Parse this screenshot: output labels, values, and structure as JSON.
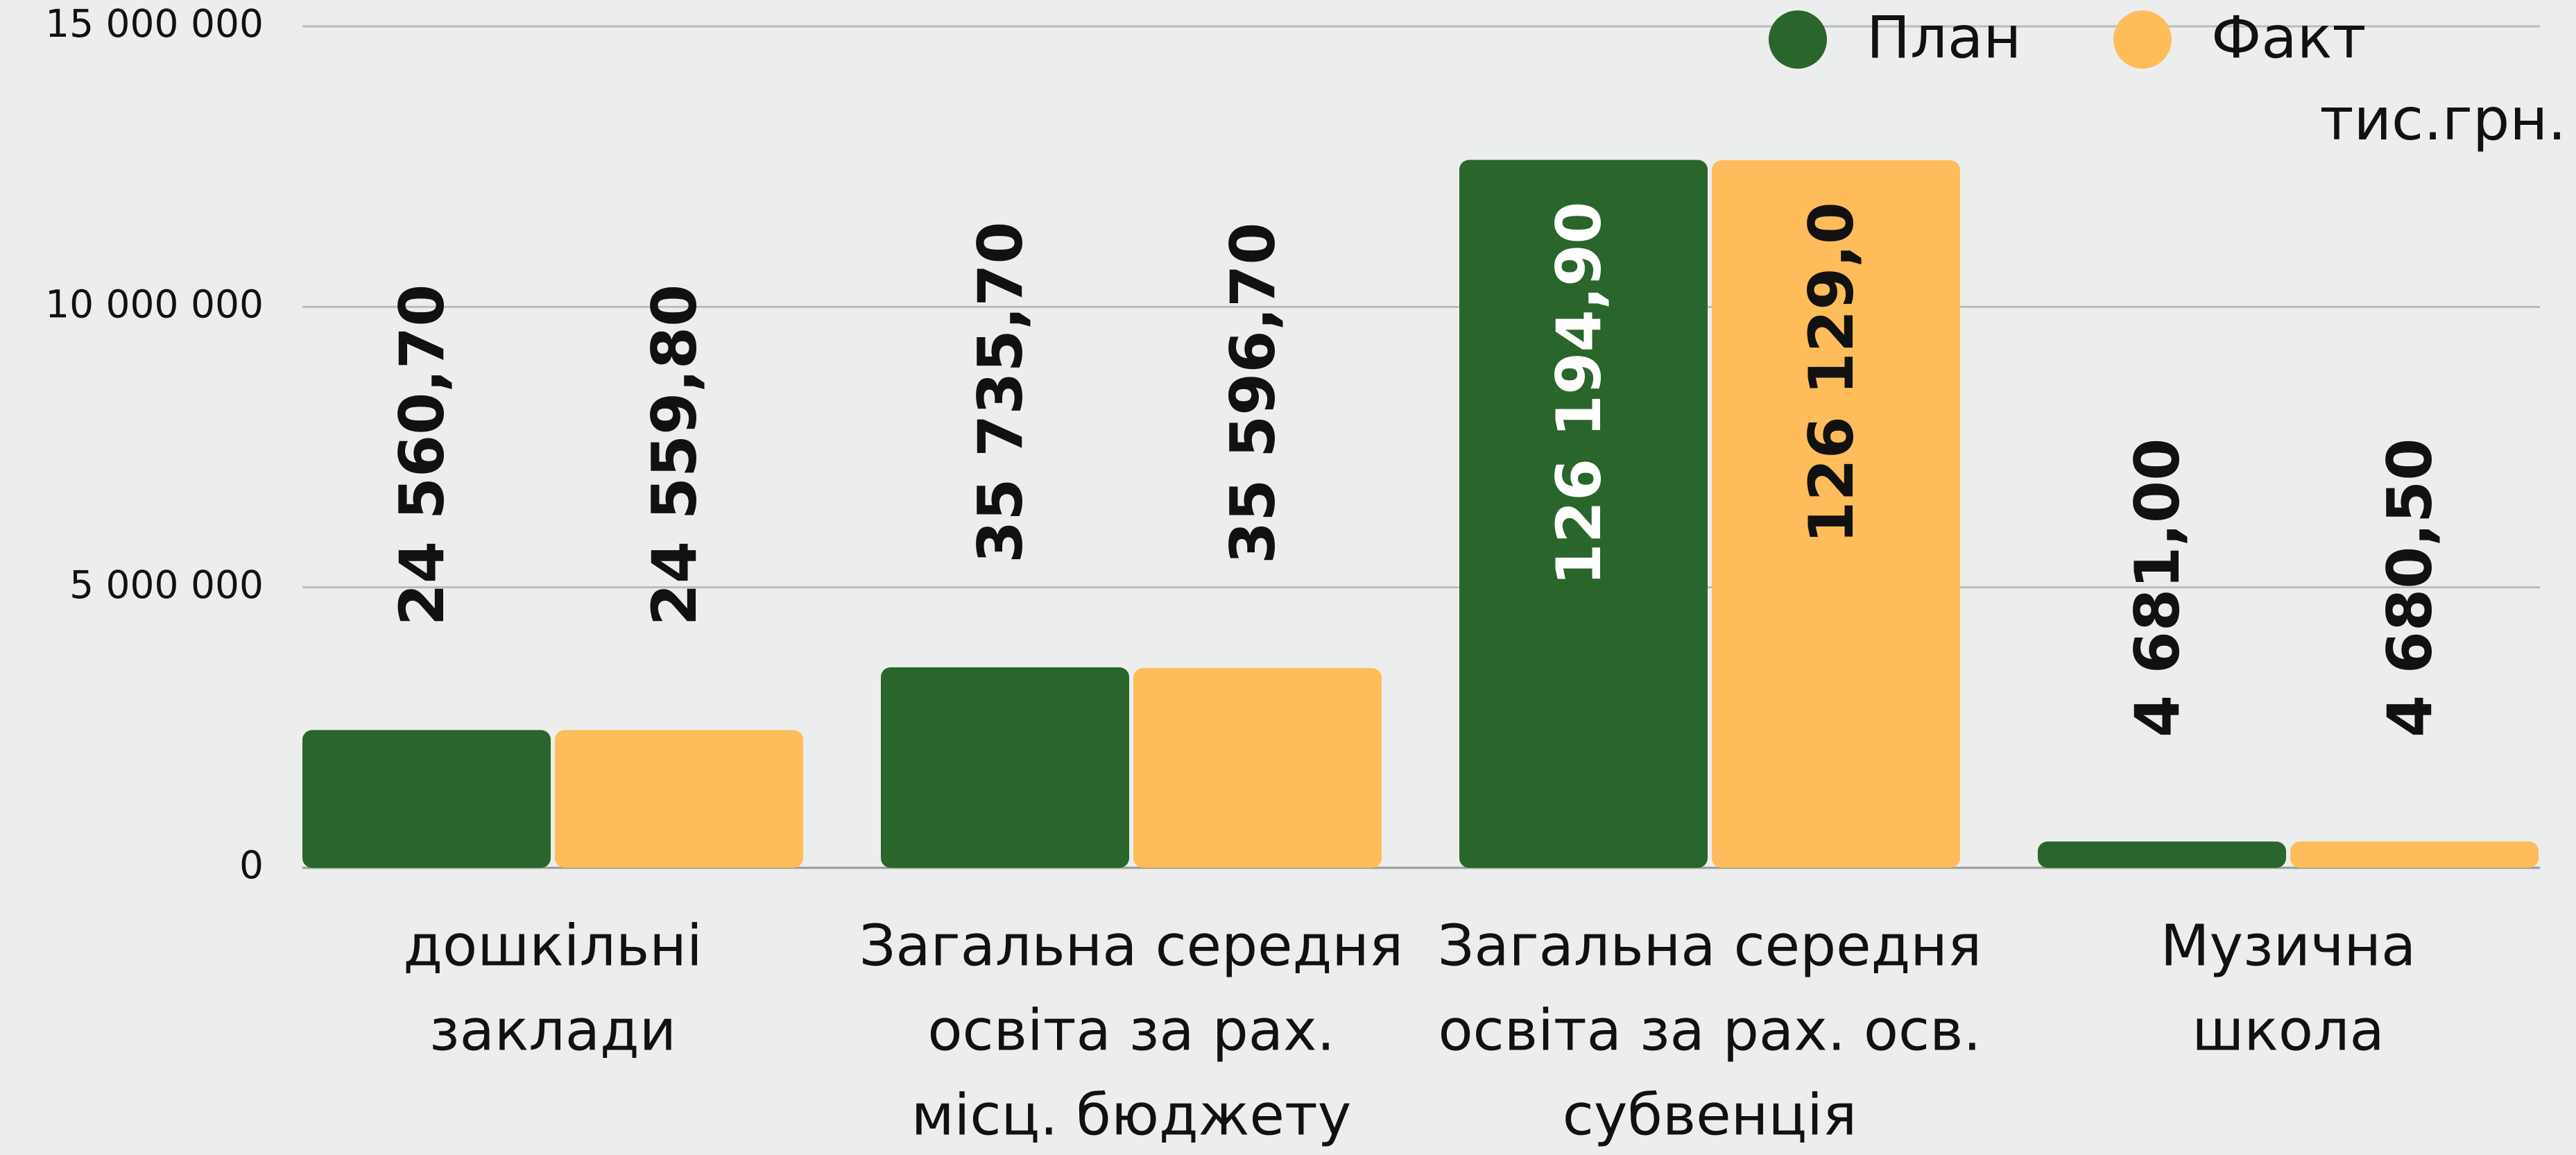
{
  "chart_data": {
    "type": "bar",
    "categories": [
      [
        "дошкільні",
        "заклади"
      ],
      [
        "Загальна середня",
        "освіта за рах.",
        "місц. бюджету"
      ],
      [
        "Загальна середня",
        "освіта за рах. осв.",
        "субвенція"
      ],
      [
        "Музична",
        "школа"
      ]
    ],
    "series": [
      {
        "name": "План",
        "color": "#2a652b",
        "values": [
          2456070,
          3573570,
          12619490,
          468100
        ],
        "value_labels": [
          "24 560,70",
          "35 735,70",
          "126 194,90",
          "4 681,00"
        ]
      },
      {
        "name": "Факт",
        "color": "#febc5a",
        "values": [
          2455980,
          3559670,
          12612900,
          468050
        ],
        "value_labels": [
          "24 559,80",
          "35 596,70",
          "126 129,0",
          "4 680,50"
        ]
      }
    ],
    "unit": "тис.грн.",
    "ylim": [
      0,
      15000000
    ],
    "yticks": [
      0,
      {
        "value": 5000000,
        "label": "5 000 000"
      },
      {
        "value": 10000000,
        "label": "10 000 000"
      },
      {
        "value": 15000000,
        "label": "15 000 000"
      }
    ],
    "grid": true,
    "legend": "top-right"
  }
}
